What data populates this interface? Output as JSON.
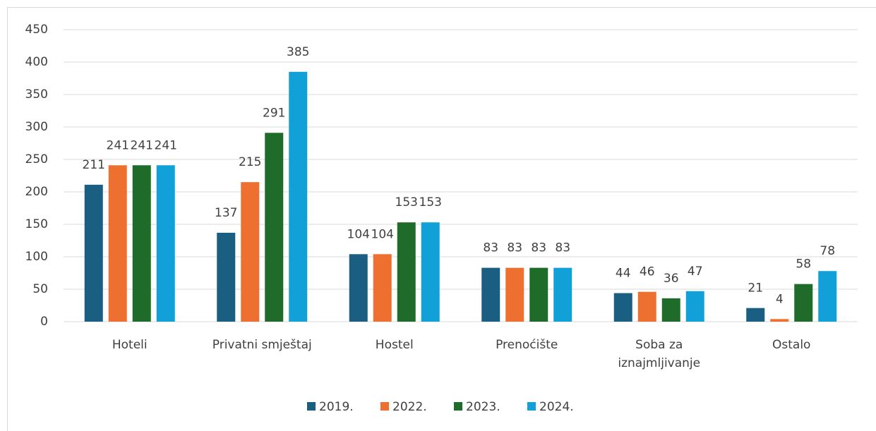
{
  "chart_data": {
    "type": "bar",
    "categories": [
      "Hoteli",
      "Privatni smještaj",
      "Hostel",
      "Prenoćište",
      "Soba za iznajmljivanje",
      "Ostalo"
    ],
    "series": [
      {
        "name": "2019.",
        "color": "#1a5e82",
        "values": [
          211,
          137,
          104,
          83,
          44,
          21
        ]
      },
      {
        "name": "2022.",
        "color": "#ed7031",
        "values": [
          241,
          215,
          104,
          83,
          46,
          4
        ]
      },
      {
        "name": "2023.",
        "color": "#1e6b2a",
        "values": [
          241,
          291,
          153,
          83,
          36,
          58
        ]
      },
      {
        "name": "2024.",
        "color": "#12a0d8",
        "values": [
          241,
          385,
          153,
          83,
          47,
          78
        ]
      }
    ],
    "ylim": [
      0,
      450
    ],
    "yticks": [
      0,
      50,
      100,
      150,
      200,
      250,
      300,
      350,
      400,
      450
    ],
    "grid": true,
    "legend": "bottom"
  }
}
